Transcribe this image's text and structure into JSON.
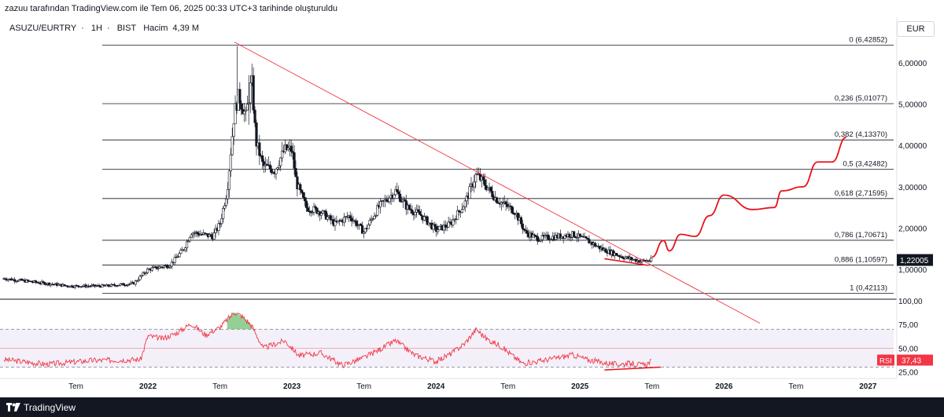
{
  "header": {
    "caption": "zazuu tarafından TradingView.com ile Tem 06, 2025 00:33 UTC+3 tarihinde oluşturuldu",
    "symbol": "ASUZU/EURTRY",
    "interval": "1H",
    "exchange": "BIST",
    "volume_label": "Hacim",
    "volume_value": "4,39 M",
    "currency": "EUR"
  },
  "footer": {
    "brand": "TradingView",
    "logo_icon": "tradingview-logo-icon"
  },
  "colors": {
    "candle": "#131722",
    "trendline": "#f23645",
    "projection": "#e8121a",
    "fib_line": "#131722",
    "rsi_line": "#f23645",
    "rsi_band": "#7e57c2",
    "rsi_overbought_fill": "#4caf50"
  },
  "chart_data": [
    {
      "type": "candlestick",
      "x_axis_labels": [
        "Tem",
        "2022",
        "Tem",
        "2023",
        "Tem",
        "2024",
        "Tem",
        "2025",
        "Tem",
        "2026",
        "Tem",
        "2027"
      ],
      "y_ticks": [
        "6,00000",
        "5,00000",
        "4,00000",
        "3,00000",
        "2,00000",
        "1,00000"
      ],
      "y_range": [
        0.3,
        7.1
      ],
      "last_price": "1,22005",
      "price_path": [
        {
          "t": 2021.0,
          "p": 0.78
        },
        {
          "t": 2021.45,
          "p": 0.6
        },
        {
          "t": 2021.7,
          "p": 0.6
        },
        {
          "t": 2021.9,
          "p": 0.66
        },
        {
          "t": 2022.0,
          "p": 1.0
        },
        {
          "t": 2022.15,
          "p": 1.1
        },
        {
          "t": 2022.25,
          "p": 1.5
        },
        {
          "t": 2022.3,
          "p": 1.9
        },
        {
          "t": 2022.45,
          "p": 1.8
        },
        {
          "t": 2022.5,
          "p": 2.1
        },
        {
          "t": 2022.55,
          "p": 2.9
        },
        {
          "t": 2022.6,
          "p": 4.8
        },
        {
          "t": 2022.63,
          "p": 5.2
        },
        {
          "t": 2022.68,
          "p": 4.7
        },
        {
          "t": 2022.72,
          "p": 5.6
        },
        {
          "t": 2022.75,
          "p": 4.1
        },
        {
          "t": 2022.8,
          "p": 3.5
        },
        {
          "t": 2022.88,
          "p": 3.4
        },
        {
          "t": 2022.95,
          "p": 3.9
        },
        {
          "t": 2023.0,
          "p": 3.9
        },
        {
          "t": 2023.03,
          "p": 3.1
        },
        {
          "t": 2023.1,
          "p": 2.5
        },
        {
          "t": 2023.2,
          "p": 2.4
        },
        {
          "t": 2023.3,
          "p": 2.1
        },
        {
          "t": 2023.4,
          "p": 2.3
        },
        {
          "t": 2023.5,
          "p": 1.9
        },
        {
          "t": 2023.6,
          "p": 2.5
        },
        {
          "t": 2023.72,
          "p": 2.9
        },
        {
          "t": 2023.8,
          "p": 2.5
        },
        {
          "t": 2023.9,
          "p": 2.3
        },
        {
          "t": 2024.0,
          "p": 1.95
        },
        {
          "t": 2024.1,
          "p": 2.1
        },
        {
          "t": 2024.2,
          "p": 2.6
        },
        {
          "t": 2024.28,
          "p": 3.3
        },
        {
          "t": 2024.33,
          "p": 3.1
        },
        {
          "t": 2024.42,
          "p": 2.7
        },
        {
          "t": 2024.55,
          "p": 2.4
        },
        {
          "t": 2024.62,
          "p": 1.9
        },
        {
          "t": 2024.7,
          "p": 1.75
        },
        {
          "t": 2024.85,
          "p": 1.8
        },
        {
          "t": 2024.95,
          "p": 1.85
        },
        {
          "t": 2025.05,
          "p": 1.7
        },
        {
          "t": 2025.15,
          "p": 1.5
        },
        {
          "t": 2025.3,
          "p": 1.3
        },
        {
          "t": 2025.42,
          "p": 1.2
        },
        {
          "t": 2025.5,
          "p": 1.22
        }
      ],
      "fibonacci_levels": [
        {
          "ratio": "0",
          "label": "(6,42852)",
          "price": 6.42852
        },
        {
          "ratio": "0,236",
          "label": "(5,01077)",
          "price": 5.01077
        },
        {
          "ratio": "0,382",
          "label": "(4,13370)",
          "price": 4.1337
        },
        {
          "ratio": "0,5",
          "label": "(3,42482)",
          "price": 3.42482
        },
        {
          "ratio": "0,618",
          "label": "(2,71595)",
          "price": 2.71595
        },
        {
          "ratio": "0,786",
          "label": "(1,70671)",
          "price": 1.70671
        },
        {
          "ratio": "0,886",
          "label": "(1,10597)",
          "price": 1.10597
        },
        {
          "ratio": "1",
          "label": "(0,42113)",
          "price": 0.42113
        }
      ],
      "trendline": [
        {
          "t": 2022.6,
          "p": 6.5
        },
        {
          "t": 2026.25,
          "p": -0.3
        }
      ],
      "support_line": [
        {
          "t": 2025.17,
          "p": 1.26
        },
        {
          "t": 2025.47,
          "p": 1.1
        }
      ],
      "projection_path": [
        {
          "t": 2025.5,
          "p": 1.3
        },
        {
          "t": 2025.58,
          "p": 1.7
        },
        {
          "t": 2025.62,
          "p": 1.45
        },
        {
          "t": 2025.7,
          "p": 1.85
        },
        {
          "t": 2025.8,
          "p": 1.8
        },
        {
          "t": 2025.9,
          "p": 2.3
        },
        {
          "t": 2026.0,
          "p": 2.8
        },
        {
          "t": 2026.2,
          "p": 2.45
        },
        {
          "t": 2026.35,
          "p": 2.5
        },
        {
          "t": 2026.4,
          "p": 2.9
        },
        {
          "t": 2026.55,
          "p": 3.0
        },
        {
          "t": 2026.65,
          "p": 3.6
        },
        {
          "t": 2026.75,
          "p": 3.6
        },
        {
          "t": 2026.85,
          "p": 4.2
        }
      ]
    },
    {
      "type": "line",
      "indicator": "RSI",
      "value_label": "37,43",
      "y_ticks": [
        "100,00",
        "75,00",
        "50,00",
        "25,00"
      ],
      "y_range": [
        18,
        100
      ],
      "bands": [
        70,
        50,
        30
      ],
      "path": [
        {
          "t": 2021.0,
          "v": 38
        },
        {
          "t": 2021.3,
          "v": 33
        },
        {
          "t": 2021.6,
          "v": 37
        },
        {
          "t": 2021.95,
          "v": 38
        },
        {
          "t": 2022.0,
          "v": 63
        },
        {
          "t": 2022.1,
          "v": 60
        },
        {
          "t": 2022.2,
          "v": 66
        },
        {
          "t": 2022.3,
          "v": 76
        },
        {
          "t": 2022.4,
          "v": 64
        },
        {
          "t": 2022.5,
          "v": 72
        },
        {
          "t": 2022.6,
          "v": 88
        },
        {
          "t": 2022.65,
          "v": 84
        },
        {
          "t": 2022.72,
          "v": 74
        },
        {
          "t": 2022.8,
          "v": 50
        },
        {
          "t": 2022.95,
          "v": 58
        },
        {
          "t": 2023.05,
          "v": 42
        },
        {
          "t": 2023.2,
          "v": 45
        },
        {
          "t": 2023.35,
          "v": 32
        },
        {
          "t": 2023.5,
          "v": 40
        },
        {
          "t": 2023.6,
          "v": 48
        },
        {
          "t": 2023.72,
          "v": 58
        },
        {
          "t": 2023.85,
          "v": 43
        },
        {
          "t": 2024.0,
          "v": 36
        },
        {
          "t": 2024.1,
          "v": 44
        },
        {
          "t": 2024.2,
          "v": 55
        },
        {
          "t": 2024.28,
          "v": 70
        },
        {
          "t": 2024.35,
          "v": 60
        },
        {
          "t": 2024.45,
          "v": 52
        },
        {
          "t": 2024.6,
          "v": 34
        },
        {
          "t": 2024.7,
          "v": 36
        },
        {
          "t": 2024.85,
          "v": 40
        },
        {
          "t": 2024.95,
          "v": 43
        },
        {
          "t": 2025.05,
          "v": 38
        },
        {
          "t": 2025.15,
          "v": 35
        },
        {
          "t": 2025.25,
          "v": 33
        },
        {
          "t": 2025.35,
          "v": 34
        },
        {
          "t": 2025.45,
          "v": 32
        },
        {
          "t": 2025.5,
          "v": 37
        }
      ],
      "support_line": [
        {
          "t": 2025.17,
          "v": 27
        },
        {
          "t": 2025.56,
          "v": 30
        }
      ]
    }
  ]
}
